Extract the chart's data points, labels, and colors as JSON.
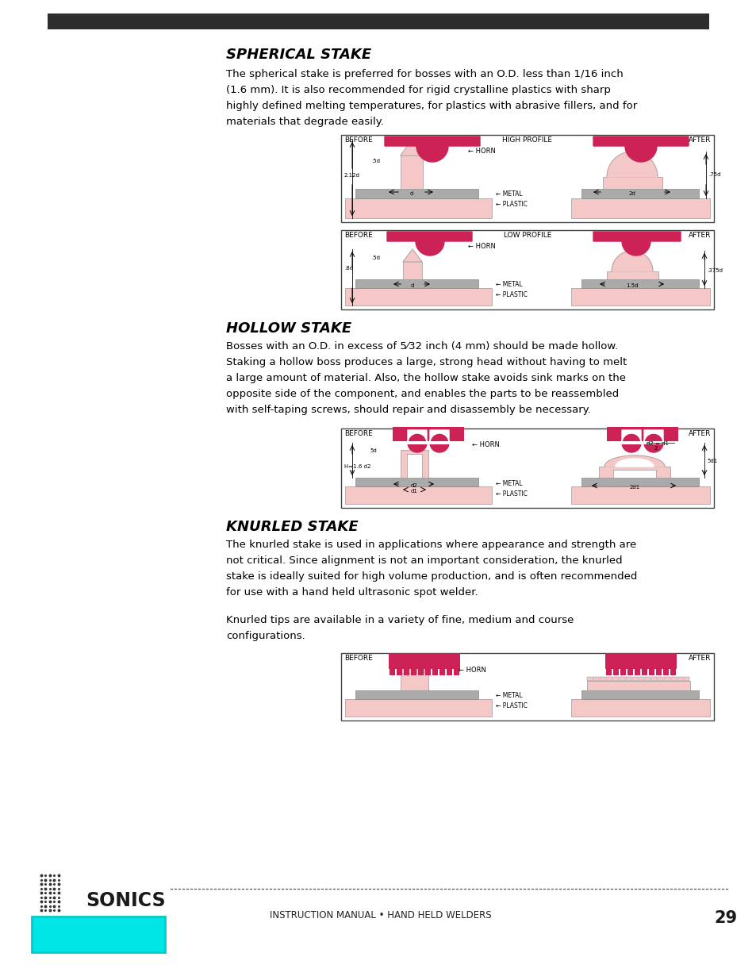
{
  "bg_color": "#ffffff",
  "header_bar_color": "#2d2d2d",
  "title1": "SPHERICAL STAKE",
  "title2": "HOLLOW STAKE",
  "title3": "KNURLED STAKE",
  "body_text1_lines": [
    "The spherical stake is preferred for bosses with an O.D. less than 1/16 inch",
    "(1.6 mm). It is also recommended for rigid crystalline plastics with sharp",
    "highly defined melting temperatures, for plastics with abrasive fillers, and for",
    "materials that degrade easily."
  ],
  "body_text2_lines": [
    "Bosses with an O.D. in excess of 5⁄32 inch (4 mm) should be made hollow.",
    "Staking a hollow boss produces a large, strong head without having to melt",
    "a large amount of material. Also, the hollow stake avoids sink marks on the",
    "opposite side of the component, and enables the parts to be reassembled",
    "with self-taping screws, should repair and disassembly be necessary."
  ],
  "body_text3_lines": [
    "The knurled stake is used in applications where appearance and strength are",
    "not critical. Since alignment is not an important consideration, the knurled",
    "stake is ideally suited for high volume production, and is often recommended",
    "for use with a hand held ultrasonic spot welder."
  ],
  "body_text4_lines": [
    "Knurled tips are available in a variety of fine, medium and course",
    "configurations."
  ],
  "footer_text": "INSTRUCTION MANUAL • HAND HELD WELDERS",
  "page_number": "29",
  "sonics_text": "SONICS",
  "red_color": "#cc2255",
  "light_pink": "#f5c8c8",
  "gray_color": "#aaaaaa",
  "cyan_color": "#00e5e5"
}
